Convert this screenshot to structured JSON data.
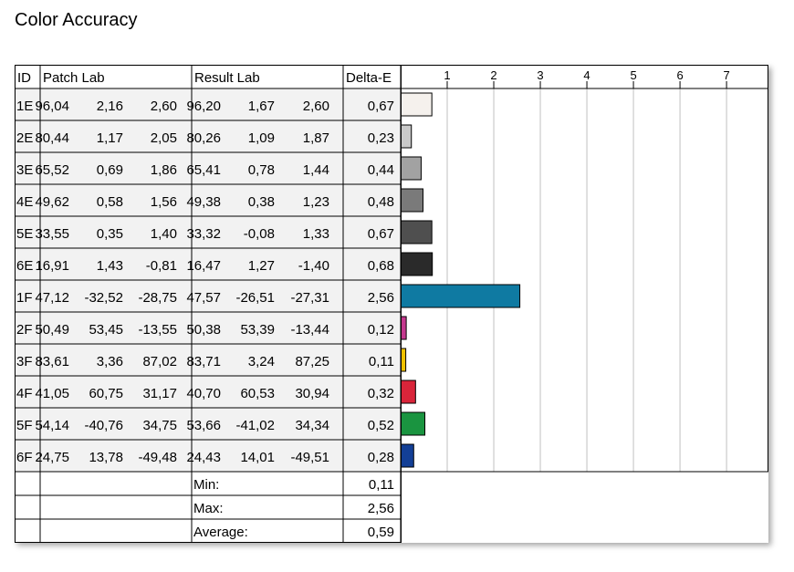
{
  "page_title": "Color Accuracy",
  "table": {
    "headers": {
      "id": "ID",
      "patch": "Patch Lab",
      "result": "Result Lab",
      "delta": "Delta-E"
    },
    "rows": [
      {
        "id": "1E",
        "patch": [
          "96,04",
          "2,16",
          "2,60"
        ],
        "result": [
          "96,20",
          "1,67",
          "2,60"
        ],
        "delta": "0,67"
      },
      {
        "id": "2E",
        "patch": [
          "80,44",
          "1,17",
          "2,05"
        ],
        "result": [
          "80,26",
          "1,09",
          "1,87"
        ],
        "delta": "0,23"
      },
      {
        "id": "3E",
        "patch": [
          "65,52",
          "0,69",
          "1,86"
        ],
        "result": [
          "65,41",
          "0,78",
          "1,44"
        ],
        "delta": "0,44"
      },
      {
        "id": "4E",
        "patch": [
          "49,62",
          "0,58",
          "1,56"
        ],
        "result": [
          "49,38",
          "0,38",
          "1,23"
        ],
        "delta": "0,48"
      },
      {
        "id": "5E",
        "patch": [
          "33,55",
          "0,35",
          "1,40"
        ],
        "result": [
          "33,32",
          "-0,08",
          "1,33"
        ],
        "delta": "0,67"
      },
      {
        "id": "6E",
        "patch": [
          "16,91",
          "1,43",
          "-0,81"
        ],
        "result": [
          "16,47",
          "1,27",
          "-1,40"
        ],
        "delta": "0,68"
      },
      {
        "id": "1F",
        "patch": [
          "47,12",
          "-32,52",
          "-28,75"
        ],
        "result": [
          "47,57",
          "-26,51",
          "-27,31"
        ],
        "delta": "2,56"
      },
      {
        "id": "2F",
        "patch": [
          "50,49",
          "53,45",
          "-13,55"
        ],
        "result": [
          "50,38",
          "53,39",
          "-13,44"
        ],
        "delta": "0,12"
      },
      {
        "id": "3F",
        "patch": [
          "83,61",
          "3,36",
          "87,02"
        ],
        "result": [
          "83,71",
          "3,24",
          "87,25"
        ],
        "delta": "0,11"
      },
      {
        "id": "4F",
        "patch": [
          "41,05",
          "60,75",
          "31,17"
        ],
        "result": [
          "40,70",
          "60,53",
          "30,94"
        ],
        "delta": "0,32"
      },
      {
        "id": "5F",
        "patch": [
          "54,14",
          "-40,76",
          "34,75"
        ],
        "result": [
          "53,66",
          "-41,02",
          "34,34"
        ],
        "delta": "0,52"
      },
      {
        "id": "6F",
        "patch": [
          "24,75",
          "13,78",
          "-49,48"
        ],
        "result": [
          "24,43",
          "14,01",
          "-49,51"
        ],
        "delta": "0,28"
      }
    ],
    "summary": [
      {
        "label": "Min:",
        "value": "0,11"
      },
      {
        "label": "Max:",
        "value": "2,56"
      },
      {
        "label": "Average:",
        "value": "0,59"
      }
    ]
  },
  "colors": {
    "border": "#000000",
    "cell_bg": "#f2f2f2",
    "grid": "#c0c0c0"
  },
  "chart_data": {
    "type": "bar",
    "orientation": "horizontal",
    "categories": [
      "1E",
      "2E",
      "3E",
      "4E",
      "5E",
      "6E",
      "1F",
      "2F",
      "3F",
      "4F",
      "5F",
      "6F"
    ],
    "values": [
      0.67,
      0.23,
      0.44,
      0.48,
      0.67,
      0.68,
      2.56,
      0.12,
      0.11,
      0.32,
      0.52,
      0.28
    ],
    "bar_colors": [
      "#f5f1ed",
      "#c9c9c9",
      "#a2a2a2",
      "#7a7a7a",
      "#4f4f4f",
      "#2a2a2a",
      "#0f7aa2",
      "#c4388e",
      "#f2c200",
      "#d9253a",
      "#1a9440",
      "#133f96"
    ],
    "x_ticks": [
      "1",
      "2",
      "3",
      "4",
      "5",
      "6",
      "7"
    ],
    "xlim": [
      0,
      7.9
    ],
    "grid": true,
    "title": "",
    "xlabel": "",
    "ylabel": ""
  }
}
